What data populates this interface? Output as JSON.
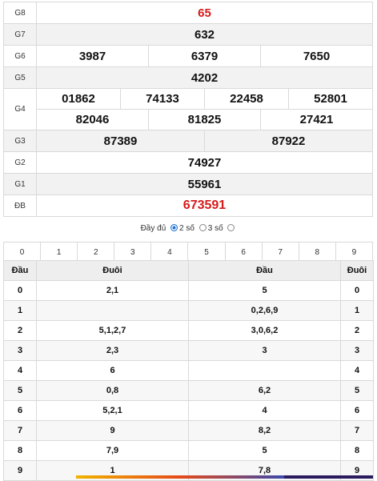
{
  "prizes": {
    "g8": {
      "label": "G8",
      "values": [
        "65"
      ]
    },
    "g7": {
      "label": "G7",
      "values": [
        "632"
      ]
    },
    "g6": {
      "label": "G6",
      "values": [
        "3987",
        "6379",
        "7650"
      ]
    },
    "g5": {
      "label": "G5",
      "values": [
        "4202"
      ]
    },
    "g4": {
      "label": "G4",
      "row1": [
        "01862",
        "74133",
        "22458",
        "52801"
      ],
      "row2": [
        "82046",
        "81825",
        "27421"
      ]
    },
    "g3": {
      "label": "G3",
      "values": [
        "87389",
        "87922"
      ]
    },
    "g2": {
      "label": "G2",
      "values": [
        "74927"
      ]
    },
    "g1": {
      "label": "G1",
      "values": [
        "55961"
      ]
    },
    "db": {
      "label": "ĐB",
      "values": [
        "673591"
      ]
    }
  },
  "filter": {
    "full": "Đầy đủ",
    "two": "2 số",
    "three": "3 số",
    "selected": "2 số"
  },
  "digits": [
    "0",
    "1",
    "2",
    "3",
    "4",
    "5",
    "6",
    "7",
    "8",
    "9"
  ],
  "loto": {
    "headers": {
      "dau_left": "Đầu",
      "duoi_left": "Đuôi",
      "dau_right": "Đầu",
      "duoi_right": "Đuôi"
    },
    "rows": [
      {
        "head": "0",
        "tails": "2,1",
        "heads": "5",
        "tail": "0"
      },
      {
        "head": "1",
        "tails": "",
        "heads": "0,2,6,9",
        "tail": "1"
      },
      {
        "head": "2",
        "tails": "5,1,2,7",
        "heads": "3,0,6,2",
        "tail": "2"
      },
      {
        "head": "3",
        "tails": "2,3",
        "heads": "3",
        "tail": "3"
      },
      {
        "head": "4",
        "tails": "6",
        "heads": "",
        "tail": "4"
      },
      {
        "head": "5",
        "tails": "0,8",
        "heads": "6,2",
        "tail": "5"
      },
      {
        "head": "6",
        "tails": "5,2,1",
        "heads": "4",
        "tail": "6"
      },
      {
        "head": "7",
        "tails": "9",
        "heads": "8,2",
        "tail": "7"
      },
      {
        "head": "8",
        "tails": "7,9",
        "heads": "5",
        "tail": "8"
      },
      {
        "head": "9",
        "tails": "1",
        "heads": "7,8",
        "tail": "9"
      }
    ]
  }
}
